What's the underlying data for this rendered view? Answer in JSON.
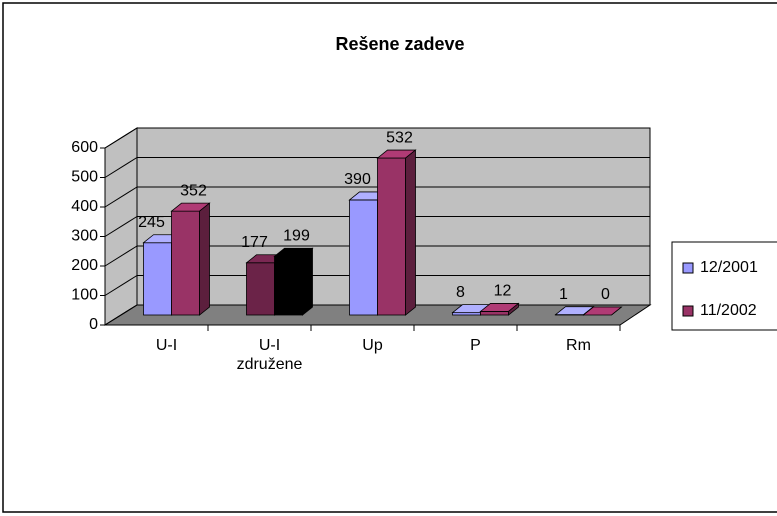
{
  "chart_data": {
    "type": "bar3d",
    "title": "Rešene zadeve",
    "categories": [
      "U-I",
      "U-I združene",
      "Up",
      "P",
      "Rm"
    ],
    "series": [
      {
        "name": "12/2001",
        "color": "#9999ff",
        "values": [
          245,
          177,
          390,
          8,
          1
        ],
        "point_colors": [
          null,
          "#6b2348",
          null,
          null,
          null
        ]
      },
      {
        "name": "11/2002",
        "color": "#993366",
        "values": [
          352,
          199,
          532,
          12,
          0
        ],
        "point_colors": [
          null,
          "#000000",
          null,
          null,
          null
        ]
      }
    ],
    "ylim": [
      0,
      600
    ],
    "yticks": [
      0,
      100,
      200,
      300,
      400,
      500,
      600
    ],
    "grid": true,
    "legend": "right"
  }
}
